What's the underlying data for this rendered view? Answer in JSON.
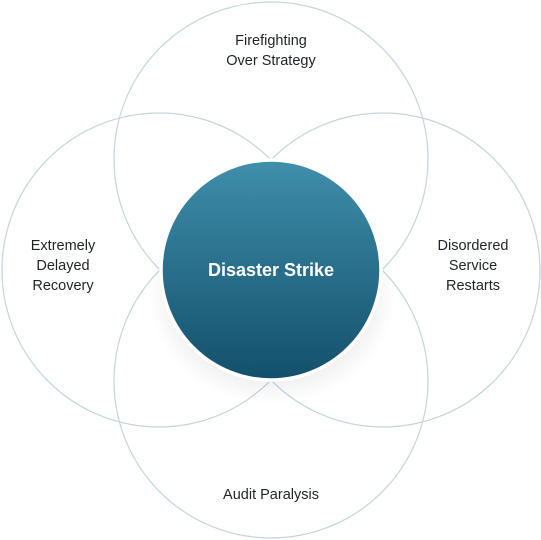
{
  "center": {
    "label": "Disaster Strike",
    "fill_top": "#3f8fab",
    "fill_bottom": "#134f6b",
    "ring_color": "#ffffff"
  },
  "petals": {
    "top": {
      "label": "Firefighting\nOver Strategy"
    },
    "left": {
      "label": "Extremely\nDelayed\nRecovery"
    },
    "right": {
      "label": "Disordered\nService\nRestarts"
    },
    "bottom": {
      "label": "Audit Paralysis"
    },
    "outline_color": "#c3d5dd"
  }
}
